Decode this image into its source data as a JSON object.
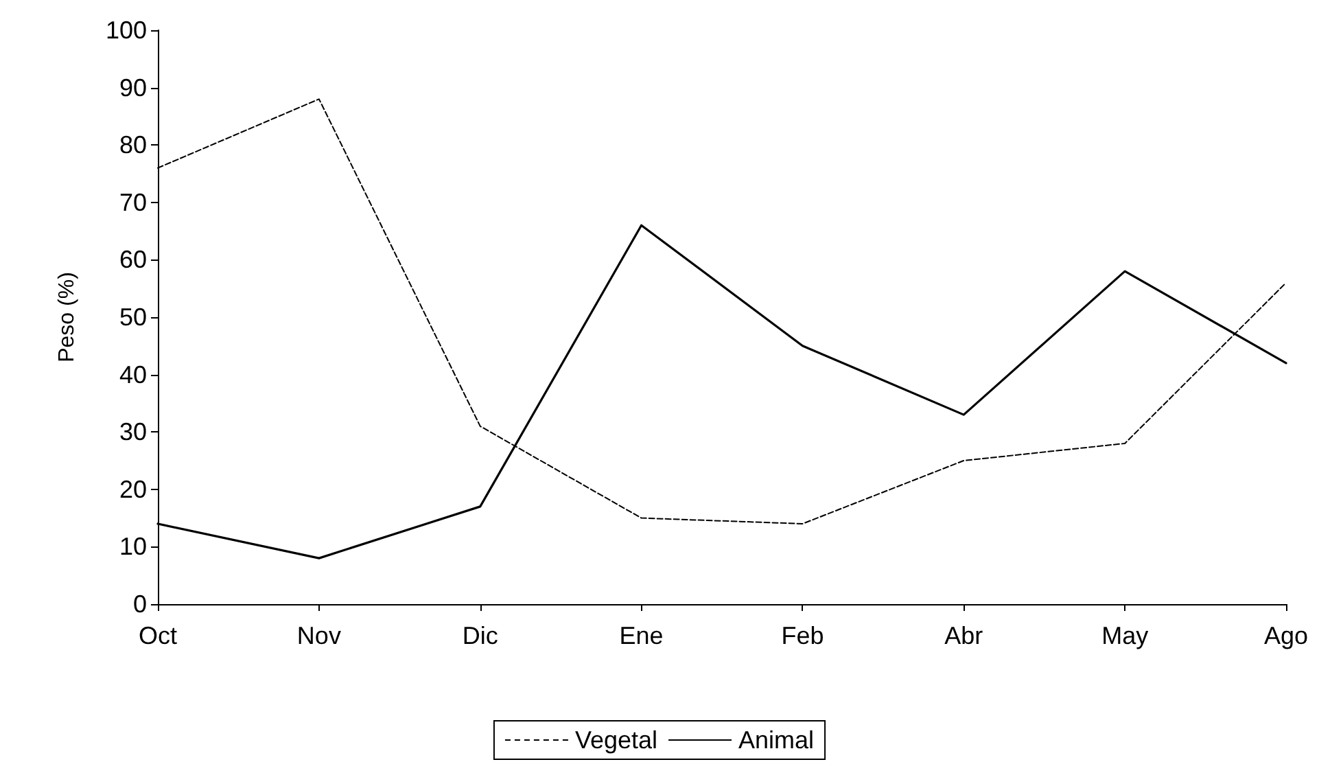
{
  "chart_data": {
    "type": "line",
    "ylabel": "Peso (%)",
    "categories": [
      "Oct",
      "Nov",
      "Dic",
      "Ene",
      "Feb",
      "Abr",
      "May",
      "Ago"
    ],
    "series": [
      {
        "name": "Vegetal",
        "color": "#000000",
        "line_style": "dashed",
        "values": [
          76,
          88,
          31,
          15,
          14,
          25,
          28,
          56
        ]
      },
      {
        "name": "Animal",
        "color": "#000000",
        "line_style": "solid",
        "values": [
          14,
          8,
          17,
          66,
          45,
          33,
          58,
          42
        ]
      }
    ],
    "ylim": [
      0,
      100
    ],
    "yticks": [
      0,
      10,
      20,
      30,
      40,
      50,
      60,
      70,
      80,
      90,
      100
    ],
    "grid": false,
    "legend": "bottom",
    "marker": "none"
  }
}
